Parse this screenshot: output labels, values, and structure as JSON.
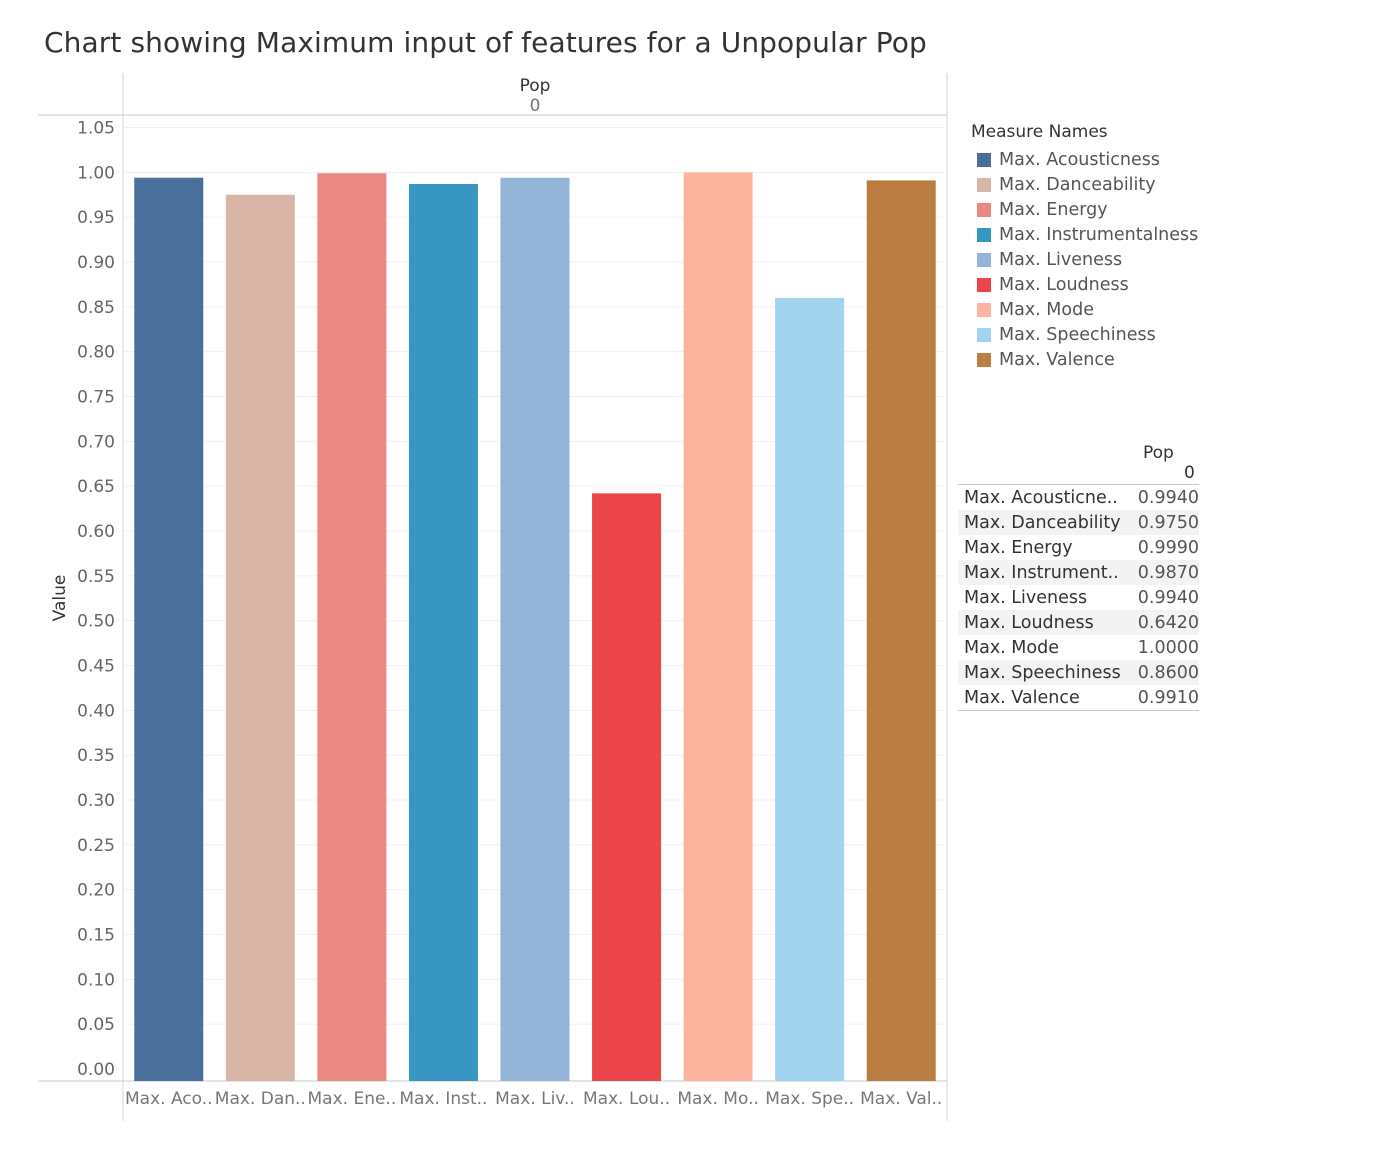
{
  "title": "Chart showing Maximum input of features for a Unpopular Pop",
  "chart_data": {
    "type": "bar",
    "column_header": {
      "field": "Pop",
      "value": "0"
    },
    "ylabel": "Value",
    "xlabel": "",
    "ylim": [
      0,
      1.05
    ],
    "yticks": [
      "0.00",
      "0.05",
      "0.10",
      "0.15",
      "0.20",
      "0.25",
      "0.30",
      "0.35",
      "0.40",
      "0.45",
      "0.50",
      "0.55",
      "0.60",
      "0.65",
      "0.70",
      "0.75",
      "0.80",
      "0.85",
      "0.90",
      "0.95",
      "1.00",
      "1.05"
    ],
    "categories": [
      "Max. Aco..",
      "Max. Dan..",
      "Max. Ene..",
      "Max. Inst..",
      "Max. Liv..",
      "Max. Lou..",
      "Max. Mo..",
      "Max. Spe..",
      "Max. Val.."
    ],
    "values": [
      0.994,
      0.975,
      0.999,
      0.987,
      0.994,
      0.642,
      1.0,
      0.86,
      0.991
    ],
    "colors": [
      "#4a6f9b",
      "#d8b5a6",
      "#ea8881",
      "#3896c3",
      "#93b4d7",
      "#eb4549",
      "#fdb5a0",
      "#a2d3ef",
      "#ba7e43"
    ],
    "grid": true,
    "legend_position": "right"
  },
  "legend": {
    "title": "Measure Names",
    "items": [
      {
        "label": "Max. Acousticness",
        "color": "#4a6f9b"
      },
      {
        "label": "Max. Danceability",
        "color": "#d8b5a6"
      },
      {
        "label": "Max. Energy",
        "color": "#ea8881"
      },
      {
        "label": "Max. Instrumentalness",
        "color": "#3896c3"
      },
      {
        "label": "Max. Liveness",
        "color": "#93b4d7"
      },
      {
        "label": "Max. Loudness",
        "color": "#eb4549"
      },
      {
        "label": "Max. Mode",
        "color": "#fdb5a0"
      },
      {
        "label": "Max. Speechiness",
        "color": "#a2d3ef"
      },
      {
        "label": "Max. Valence",
        "color": "#ba7e43"
      }
    ]
  },
  "table": {
    "header_field": "Pop",
    "header_value": "0",
    "rows": [
      {
        "label": "Max. Acousticne..",
        "value": "0.9940"
      },
      {
        "label": "Max. Danceability",
        "value": "0.9750"
      },
      {
        "label": "Max. Energy",
        "value": "0.9990"
      },
      {
        "label": "Max. Instrument..",
        "value": "0.9870"
      },
      {
        "label": "Max. Liveness",
        "value": "0.9940"
      },
      {
        "label": "Max. Loudness",
        "value": "0.6420"
      },
      {
        "label": "Max. Mode",
        "value": "1.0000"
      },
      {
        "label": "Max. Speechiness",
        "value": "0.8600"
      },
      {
        "label": "Max. Valence",
        "value": "0.9910"
      }
    ]
  }
}
